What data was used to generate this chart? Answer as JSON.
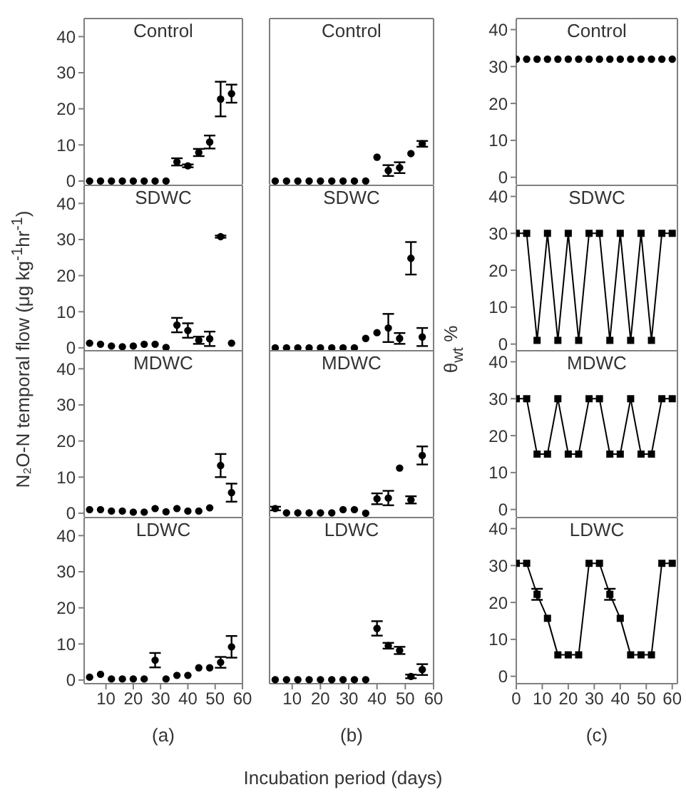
{
  "chart_data": [
    {
      "type": "scatter",
      "title": "Control",
      "ylabel": "N₂O-N temporal flow (μg kg$^{-1}$hr$^{-1}$)",
      "x": [
        4,
        8,
        12,
        16,
        20,
        24,
        28,
        32,
        36,
        40,
        44,
        48,
        52,
        56
      ],
      "values": [
        0,
        0,
        0,
        0,
        0,
        0,
        0,
        0,
        5.3,
        4.2,
        7.9,
        10.8,
        22.7,
        24.2
      ],
      "errors": [
        null,
        null,
        null,
        null,
        null,
        null,
        null,
        null,
        1,
        0.4,
        1,
        1.8,
        4.8,
        2.5
      ],
      "color": "#000000",
      "marker": "circle",
      "xlim": [
        2,
        60
      ],
      "xticks": [
        10,
        20,
        30,
        40,
        50,
        60
      ],
      "ylim": [
        -1,
        45
      ],
      "yticks": [
        0,
        10,
        20,
        30,
        40
      ],
      "tick_labels": "y"
    },
    {
      "type": "scatter",
      "title": "Control",
      "x": [
        4,
        8,
        12,
        16,
        20,
        24,
        28,
        32,
        36,
        40,
        44,
        48,
        52,
        56
      ],
      "values": [
        0,
        0,
        0,
        0,
        0,
        0,
        0,
        0,
        0,
        6.6,
        2.9,
        3.7,
        7.6,
        10.3
      ],
      "errors": [
        null,
        null,
        null,
        null,
        null,
        null,
        null,
        null,
        null,
        null,
        1.5,
        1.5,
        null,
        0.8
      ],
      "color": "#000000",
      "marker": "circle",
      "xlim": [
        2,
        60
      ],
      "xticks": [
        10,
        20,
        30,
        40,
        50,
        60
      ],
      "ylim": [
        -1,
        45
      ],
      "yticks": [
        0,
        10,
        20,
        30,
        40
      ],
      "tick_labels": false
    },
    {
      "type": "scatter",
      "title": "Control",
      "x": [
        0,
        4,
        8,
        12,
        16,
        20,
        24,
        28,
        32,
        36,
        40,
        44,
        48,
        52,
        56,
        60
      ],
      "values": [
        32,
        32,
        32,
        32,
        32,
        32,
        32,
        32,
        32,
        32,
        32,
        32,
        32,
        32,
        32,
        32
      ],
      "color": "#000000",
      "marker": "circle",
      "xlim": [
        0,
        62
      ],
      "xticks": [
        0,
        10,
        20,
        30,
        40,
        50,
        60
      ],
      "ylim": [
        -2,
        43
      ],
      "yticks": [
        0,
        10,
        20,
        30,
        40
      ],
      "tick_labels": "y"
    },
    {
      "type": "scatter",
      "title": "SDWC",
      "x": [
        4,
        8,
        12,
        16,
        20,
        24,
        28,
        32,
        36,
        40,
        44,
        48,
        52,
        56
      ],
      "values": [
        1.3,
        1,
        0.5,
        0.3,
        0.5,
        1,
        1,
        0.1,
        6.3,
        4.8,
        2.1,
        2.5,
        30.8,
        1.3
      ],
      "errors": [
        null,
        null,
        null,
        null,
        null,
        null,
        null,
        null,
        2,
        2,
        1,
        2,
        0.3,
        null
      ],
      "color": "#000000",
      "marker": "circle",
      "xlim": [
        2,
        60
      ],
      "xticks": [
        10,
        20,
        30,
        40,
        50,
        60
      ],
      "ylim": [
        -1,
        45
      ],
      "yticks": [
        0,
        10,
        20,
        30,
        40
      ],
      "tick_labels": "y"
    },
    {
      "type": "scatter",
      "title": "SDWC",
      "x": [
        4,
        8,
        12,
        16,
        20,
        24,
        28,
        32,
        36,
        40,
        44,
        48,
        52,
        56
      ],
      "values": [
        0,
        0,
        0,
        0,
        0,
        0,
        0,
        0,
        2.6,
        4.2,
        5.5,
        2.6,
        24.8,
        3
      ],
      "errors": [
        null,
        null,
        null,
        null,
        null,
        null,
        null,
        null,
        null,
        null,
        3.9,
        1.5,
        4.5,
        2.5
      ],
      "color": "#000000",
      "marker": "circle",
      "xlim": [
        2,
        60
      ],
      "xticks": [
        10,
        20,
        30,
        40,
        50,
        60
      ],
      "ylim": [
        -1,
        45
      ],
      "yticks": [
        0,
        10,
        20,
        30,
        40
      ],
      "tick_labels": false
    },
    {
      "type": "line",
      "title": "SDWC",
      "ylabel": "θ$_{wt}$ %",
      "x": [
        0,
        4,
        8,
        12,
        16,
        20,
        24,
        28,
        32,
        36,
        40,
        44,
        48,
        52,
        56,
        60
      ],
      "values": [
        30,
        30,
        1,
        30,
        1,
        30,
        1,
        30,
        30,
        1,
        30,
        1,
        30,
        1,
        30,
        30
      ],
      "color": "#000000",
      "marker": "square",
      "xlim": [
        0,
        62
      ],
      "xticks": [
        0,
        10,
        20,
        30,
        40,
        50,
        60
      ],
      "ylim": [
        -2,
        43
      ],
      "yticks": [
        0,
        10,
        20,
        30,
        40
      ],
      "tick_labels": "y"
    },
    {
      "type": "scatter",
      "title": "MDWC",
      "x": [
        4,
        8,
        12,
        16,
        20,
        24,
        28,
        32,
        36,
        40,
        44,
        48,
        52,
        56
      ],
      "values": [
        1,
        1,
        0.6,
        0.6,
        0.3,
        0.3,
        1.3,
        0.4,
        1.3,
        0.6,
        0.6,
        1.5,
        13.2,
        5.7
      ],
      "errors": [
        null,
        null,
        null,
        null,
        null,
        null,
        null,
        null,
        null,
        null,
        null,
        null,
        3.2,
        2.5
      ],
      "color": "#000000",
      "marker": "circle",
      "xlim": [
        2,
        60
      ],
      "xticks": [
        10,
        20,
        30,
        40,
        50,
        60
      ],
      "ylim": [
        -1,
        45
      ],
      "yticks": [
        0,
        10,
        20,
        30,
        40
      ],
      "tick_labels": "y"
    },
    {
      "type": "scatter",
      "title": "MDWC",
      "x": [
        4,
        8,
        12,
        16,
        20,
        24,
        28,
        32,
        36,
        40,
        44,
        48,
        52,
        56
      ],
      "values": [
        1.3,
        0.1,
        0.1,
        0.1,
        0.1,
        0.1,
        1,
        1,
        0,
        4,
        4.2,
        12.5,
        3.7,
        16
      ],
      "errors": [
        0.5,
        null,
        null,
        null,
        null,
        null,
        null,
        null,
        null,
        1.5,
        2,
        null,
        1,
        2.5
      ],
      "color": "#000000",
      "marker": "circle",
      "xlim": [
        2,
        60
      ],
      "xticks": [
        10,
        20,
        30,
        40,
        50,
        60
      ],
      "ylim": [
        -1,
        45
      ],
      "yticks": [
        0,
        10,
        20,
        30,
        40
      ],
      "tick_labels": false
    },
    {
      "type": "line",
      "title": "MDWC",
      "x": [
        0,
        4,
        8,
        12,
        16,
        20,
        24,
        28,
        32,
        36,
        40,
        44,
        48,
        52,
        56,
        60
      ],
      "values": [
        30,
        30,
        15,
        15,
        30,
        15,
        15,
        30,
        30,
        15,
        15,
        30,
        15,
        15,
        30,
        30
      ],
      "color": "#000000",
      "marker": "square",
      "xlim": [
        0,
        62
      ],
      "xticks": [
        0,
        10,
        20,
        30,
        40,
        50,
        60
      ],
      "ylim": [
        -2,
        43
      ],
      "yticks": [
        0,
        10,
        20,
        30,
        40
      ],
      "tick_labels": "y"
    },
    {
      "type": "scatter",
      "title": "LDWC",
      "annotations": [
        "(a)"
      ],
      "x": [
        4,
        8,
        12,
        16,
        20,
        24,
        28,
        32,
        36,
        40,
        44,
        48,
        52,
        56
      ],
      "values": [
        0.8,
        1.6,
        0.3,
        0.3,
        0.3,
        0.3,
        5.5,
        0.3,
        1.3,
        1.3,
        3.4,
        3.4,
        4.9,
        9.2
      ],
      "errors": [
        null,
        null,
        null,
        null,
        null,
        null,
        2,
        null,
        null,
        null,
        null,
        null,
        1.5,
        3
      ],
      "color": "#000000",
      "marker": "circle",
      "xlim": [
        2,
        60
      ],
      "xticks": [
        10,
        20,
        30,
        40,
        50,
        60
      ],
      "ylim": [
        -1,
        45
      ],
      "yticks": [
        0,
        10,
        20,
        30,
        40
      ]
    },
    {
      "type": "scatter",
      "title": "LDWC",
      "xlabel": "Incubation period (days)",
      "annotations": [
        "(b)"
      ],
      "x": [
        4,
        8,
        12,
        16,
        20,
        24,
        28,
        32,
        36,
        40,
        44,
        48,
        52,
        56
      ],
      "values": [
        0.1,
        0.1,
        0.1,
        0.1,
        0.1,
        0.1,
        0.1,
        0.1,
        0.1,
        14.3,
        9.5,
        8.2,
        1,
        2.9
      ],
      "errors": [
        null,
        null,
        null,
        null,
        null,
        null,
        null,
        null,
        null,
        2,
        0.8,
        1,
        0.5,
        1.5
      ],
      "color": "#000000",
      "marker": "circle",
      "xlim": [
        2,
        60
      ],
      "xticks": [
        10,
        20,
        30,
        40,
        50,
        60
      ],
      "ylim": [
        -1,
        45
      ],
      "yticks": [
        0,
        10,
        20,
        30,
        40
      ],
      "tick_labels": "x"
    },
    {
      "type": "line",
      "title": "LDWC",
      "annotations": [
        "(c)"
      ],
      "x": [
        0,
        4,
        8,
        12,
        16,
        20,
        24,
        28,
        32,
        36,
        40,
        44,
        48,
        52,
        56,
        60
      ],
      "values": [
        30.6,
        30.6,
        22.2,
        15.7,
        5.8,
        5.8,
        5.8,
        30.6,
        30.6,
        22.2,
        15.7,
        5.8,
        5.8,
        5.8,
        30.6,
        30.6
      ],
      "errors": [
        null,
        null,
        1.5,
        null,
        null,
        null,
        null,
        null,
        null,
        1.5,
        null,
        null,
        null,
        null,
        null,
        null
      ],
      "color": "#000000",
      "marker": "square",
      "xlim": [
        0,
        62
      ],
      "xticks": [
        0,
        10,
        20,
        30,
        40,
        50,
        60
      ],
      "ylim": [
        -2,
        43
      ],
      "yticks": [
        0,
        10,
        20,
        30,
        40
      ]
    }
  ]
}
